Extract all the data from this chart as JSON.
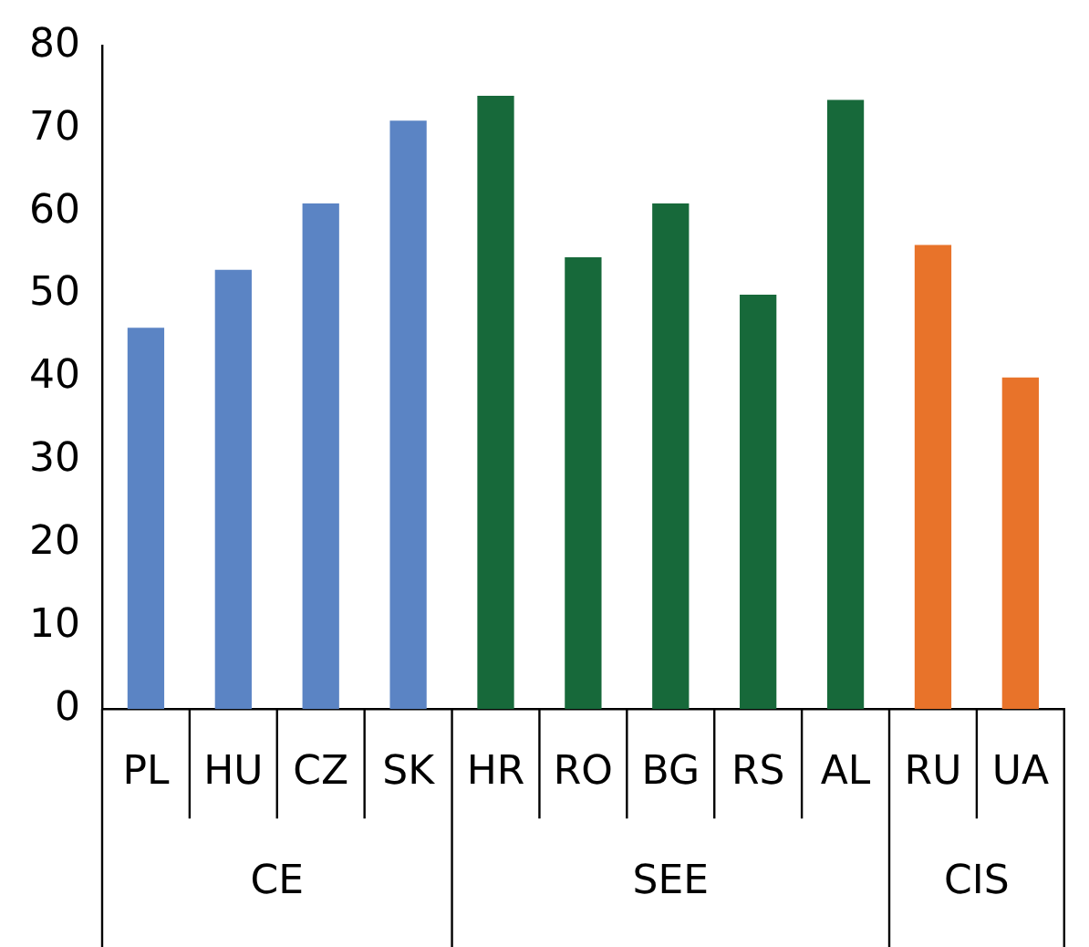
{
  "chart_data": {
    "type": "bar",
    "categories": [
      "PL",
      "HU",
      "CZ",
      "SK",
      "HR",
      "RO",
      "BG",
      "RS",
      "AL",
      "RU",
      "UA"
    ],
    "series": [
      {
        "color": "#5b84c4",
        "values": [
          46,
          53,
          61,
          71,
          null,
          null,
          null,
          null,
          null,
          null,
          null
        ]
      },
      {
        "color": "#17693a",
        "values": [
          null,
          null,
          null,
          null,
          74,
          54.5,
          61,
          50,
          73.5,
          null,
          null
        ]
      },
      {
        "color": "#e8732a",
        "values": [
          null,
          null,
          null,
          null,
          null,
          null,
          null,
          null,
          null,
          56,
          40
        ]
      }
    ],
    "annotations": [
      "CE",
      "SEE",
      "CIS"
    ],
    "ylim": [
      0,
      80
    ],
    "yticks": [
      0,
      10,
      20,
      30,
      40,
      50,
      60,
      70,
      80
    ]
  }
}
